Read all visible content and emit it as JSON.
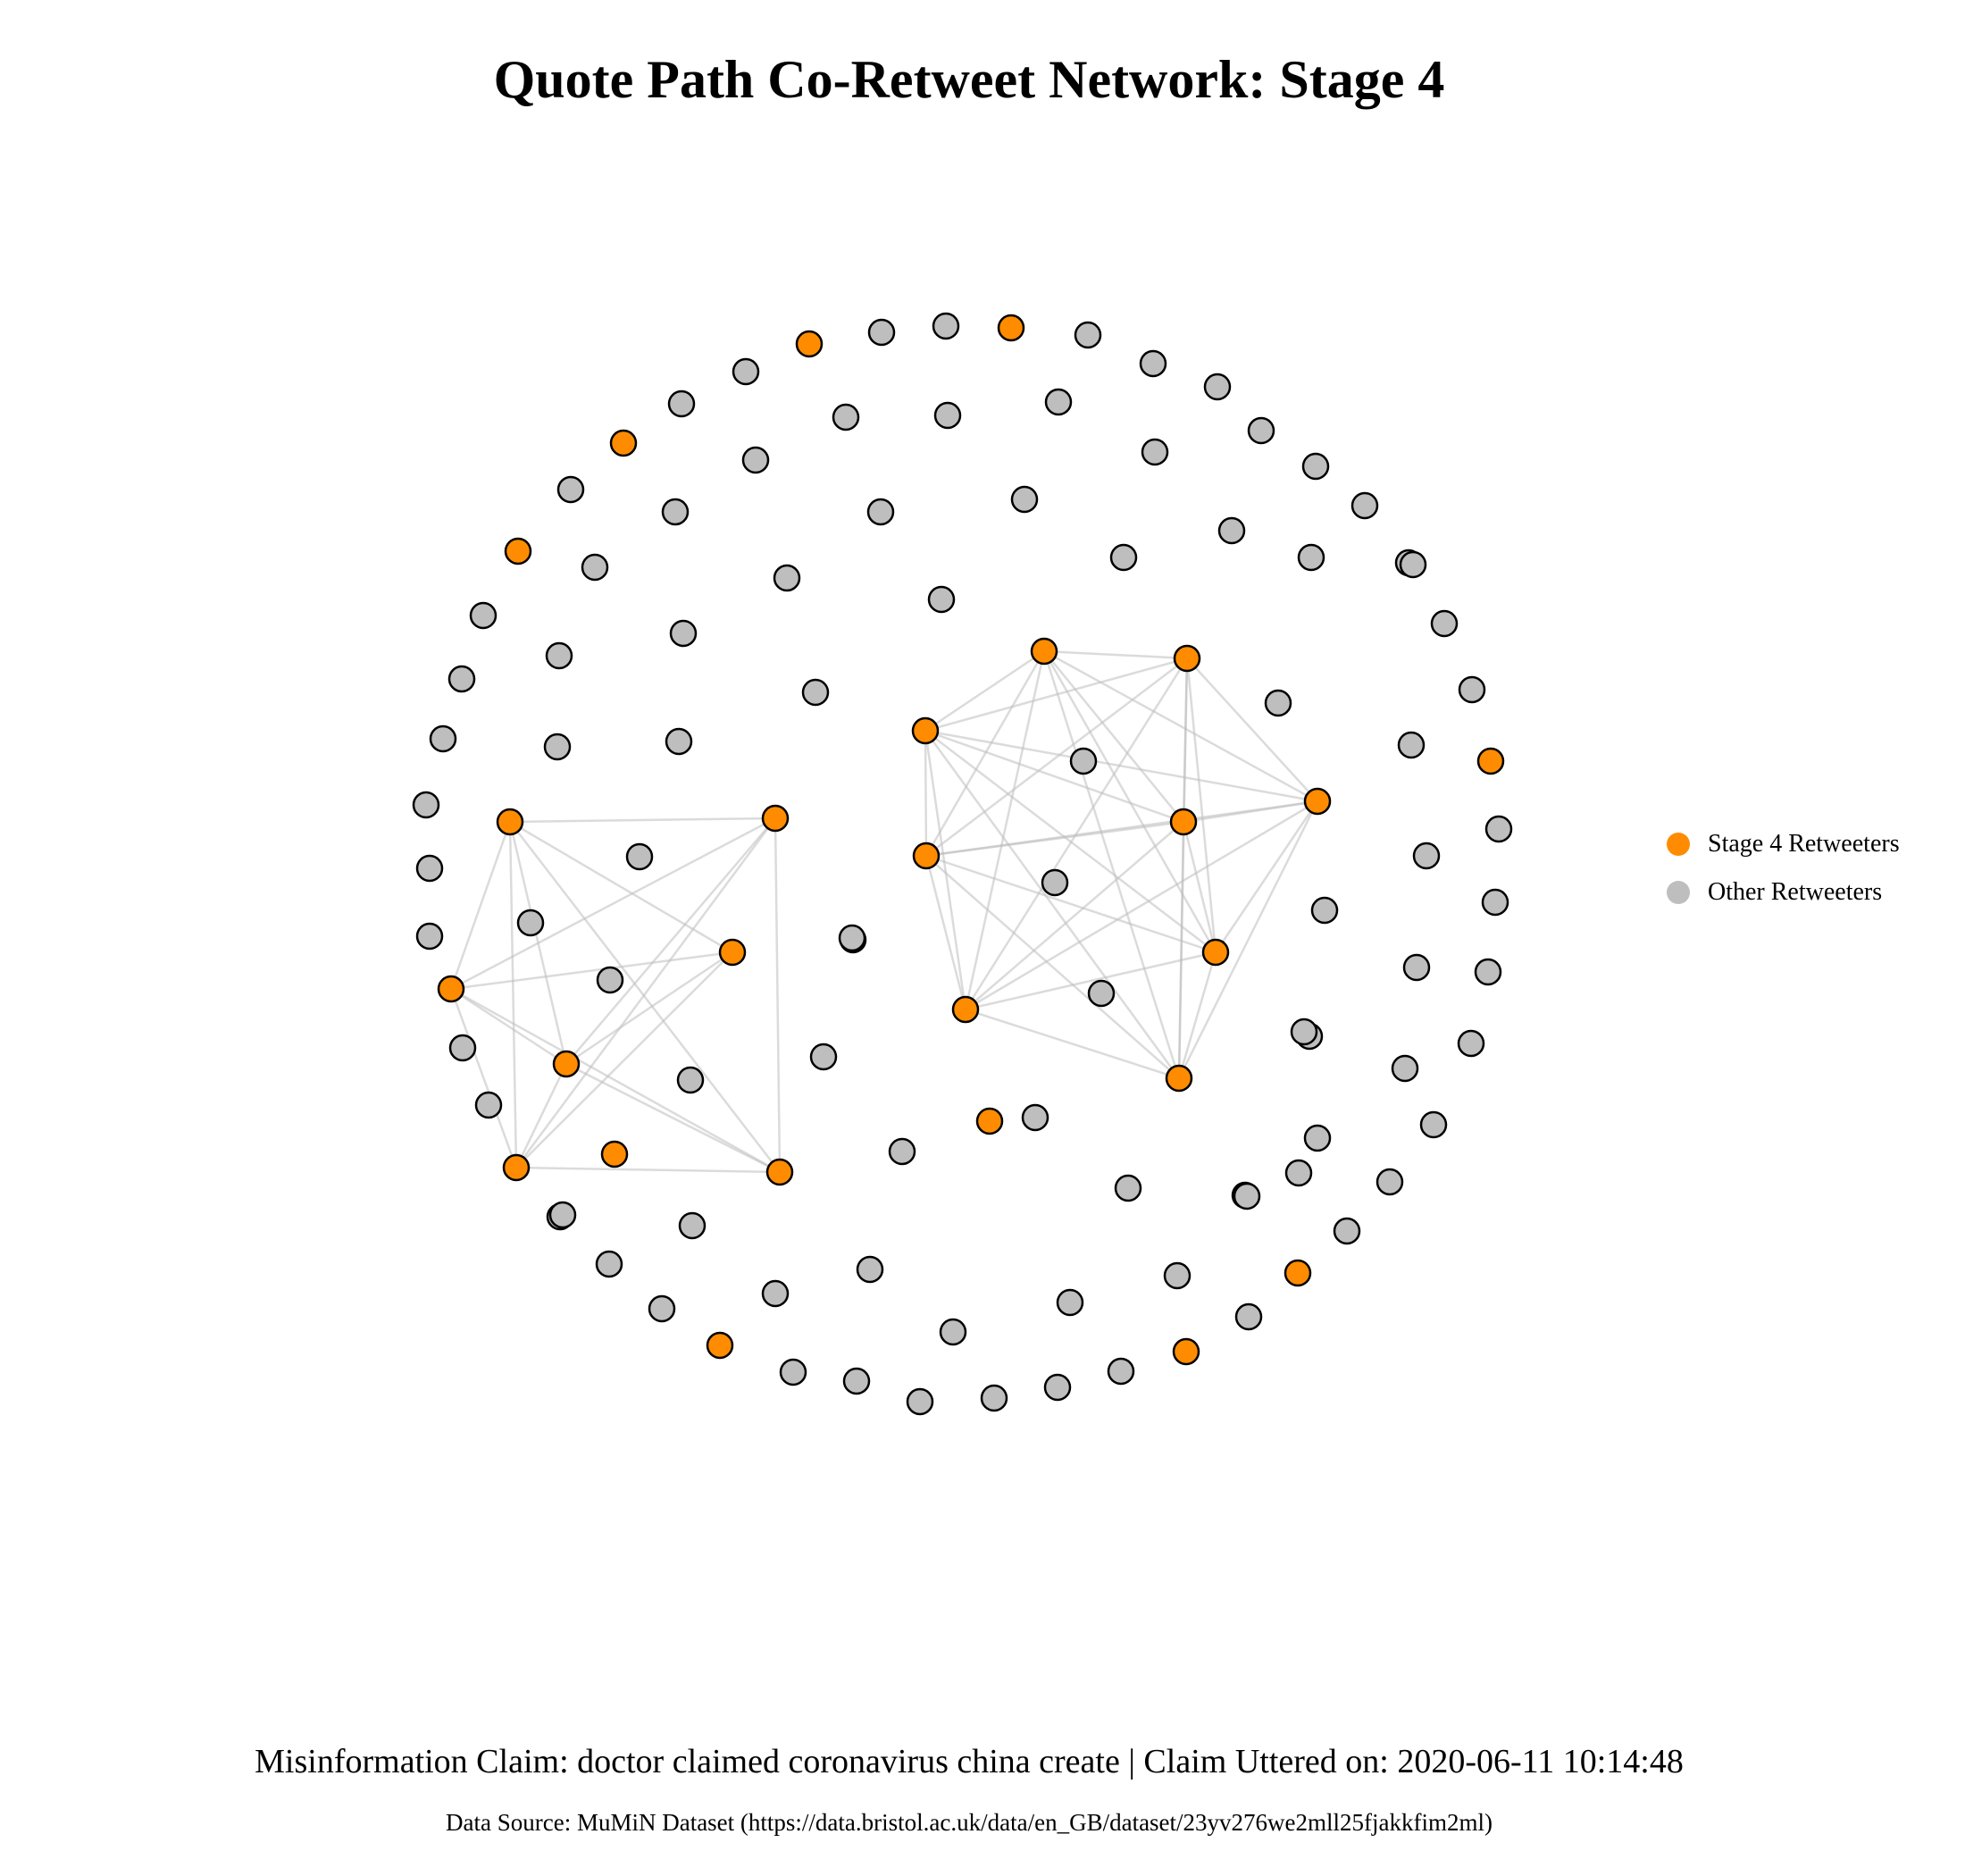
{
  "title": "Quote Path Co-Retweet Network: Stage 4",
  "caption": "Misinformation Claim: doctor claimed coronavirus china create | Claim Uttered on: 2020-06-11 10:14:48",
  "source": "Data Source: MuMiN Dataset (https://data.bristol.ac.uk/data/en_GB/dataset/23yv276we2mll25fjakkfim2ml)",
  "legend": [
    {
      "label": "Stage 4 Retweeters",
      "color": "#FF8C00"
    },
    {
      "label": "Other Retweeters",
      "color": "#BEBEBE"
    }
  ],
  "colors": {
    "stage4": "#FF8C00",
    "other": "#BEBEBE",
    "edge": "#BDBDBD",
    "node_border": "#000000"
  },
  "node_counts": {
    "stage4": 25,
    "other": 112
  },
  "left_cluster": {
    "members": [
      "L1",
      "L2",
      "L3",
      "L4",
      "L5",
      "L6",
      "L7"
    ],
    "edges": [
      [
        "L1",
        "L2"
      ],
      [
        "L1",
        "L3"
      ],
      [
        "L1",
        "L4"
      ],
      [
        "L1",
        "L5"
      ],
      [
        "L1",
        "L6"
      ],
      [
        "L1",
        "L7"
      ],
      [
        "L2",
        "L3"
      ],
      [
        "L2",
        "L5"
      ],
      [
        "L2",
        "L6"
      ],
      [
        "L2",
        "L7"
      ],
      [
        "L3",
        "L4"
      ],
      [
        "L3",
        "L5"
      ],
      [
        "L3",
        "L6"
      ],
      [
        "L3",
        "L7"
      ],
      [
        "L4",
        "L5"
      ],
      [
        "L4",
        "L6"
      ],
      [
        "L5",
        "L6"
      ],
      [
        "L5",
        "L7"
      ],
      [
        "L6",
        "L7"
      ]
    ],
    "unconnected_member": "L8"
  },
  "right_cluster": {
    "members": [
      "R1",
      "R2",
      "R3",
      "R4",
      "R5",
      "R6",
      "R7",
      "R8",
      "R9"
    ],
    "edges": [
      [
        "R1",
        "R2"
      ],
      [
        "R1",
        "R3"
      ],
      [
        "R1",
        "R4"
      ],
      [
        "R1",
        "R5"
      ],
      [
        "R1",
        "R6"
      ],
      [
        "R1",
        "R7"
      ],
      [
        "R1",
        "R8"
      ],
      [
        "R1",
        "R9"
      ],
      [
        "R2",
        "R3"
      ],
      [
        "R2",
        "R4"
      ],
      [
        "R2",
        "R5"
      ],
      [
        "R2",
        "R6"
      ],
      [
        "R2",
        "R7"
      ],
      [
        "R2",
        "R8"
      ],
      [
        "R2",
        "R9"
      ],
      [
        "R3",
        "R4"
      ],
      [
        "R3",
        "R5"
      ],
      [
        "R3",
        "R6"
      ],
      [
        "R3",
        "R7"
      ],
      [
        "R3",
        "R8"
      ],
      [
        "R3",
        "R9"
      ],
      [
        "R4",
        "R5"
      ],
      [
        "R4",
        "R6"
      ],
      [
        "R4",
        "R7"
      ],
      [
        "R4",
        "R8"
      ],
      [
        "R4",
        "R9"
      ],
      [
        "R5",
        "R6"
      ],
      [
        "R5",
        "R7"
      ],
      [
        "R5",
        "R8"
      ],
      [
        "R5",
        "R9"
      ],
      [
        "R6",
        "R7"
      ],
      [
        "R6",
        "R8"
      ],
      [
        "R6",
        "R9"
      ],
      [
        "R7",
        "R8"
      ],
      [
        "R7",
        "R9"
      ],
      [
        "R8",
        "R9"
      ]
    ]
  }
}
